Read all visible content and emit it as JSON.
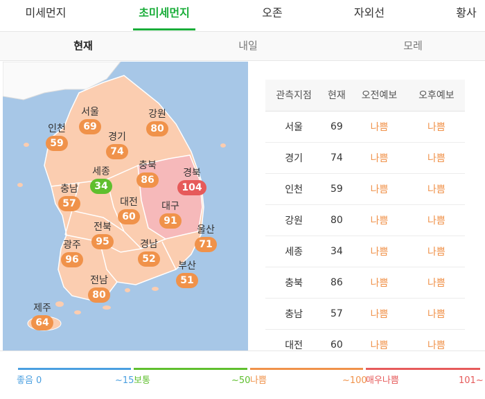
{
  "main_tabs": [
    {
      "label": "미세먼지"
    },
    {
      "label": "초미세먼지"
    },
    {
      "label": "오존"
    },
    {
      "label": "자외선"
    },
    {
      "label": "황사"
    }
  ],
  "sub_tabs": [
    {
      "label": "현재"
    },
    {
      "label": "내일"
    },
    {
      "label": "모레"
    }
  ],
  "map": {
    "regions": [
      {
        "name": "인천",
        "value": "59",
        "status": "bad"
      },
      {
        "name": "서울",
        "value": "69",
        "status": "bad"
      },
      {
        "name": "강원",
        "value": "80",
        "status": "bad"
      },
      {
        "name": "경기",
        "value": "74",
        "status": "bad"
      },
      {
        "name": "세종",
        "value": "34",
        "status": "good"
      },
      {
        "name": "충북",
        "value": "86",
        "status": "bad"
      },
      {
        "name": "경북",
        "value": "104",
        "status": "very-bad"
      },
      {
        "name": "충남",
        "value": "57",
        "status": "bad"
      },
      {
        "name": "대전",
        "value": "60",
        "status": "bad"
      },
      {
        "name": "대구",
        "value": "91",
        "status": "bad"
      },
      {
        "name": "전북",
        "value": "95",
        "status": "bad"
      },
      {
        "name": "울산",
        "value": "71",
        "status": "bad"
      },
      {
        "name": "광주",
        "value": "96",
        "status": "bad"
      },
      {
        "name": "경남",
        "value": "52",
        "status": "bad"
      },
      {
        "name": "부산",
        "value": "51",
        "status": "bad"
      },
      {
        "name": "전남",
        "value": "80",
        "status": "bad"
      },
      {
        "name": "제주",
        "value": "64",
        "status": "bad"
      }
    ]
  },
  "table": {
    "headers": [
      "관측지점",
      "현재",
      "오전예보",
      "오후예보"
    ],
    "rows": [
      [
        "서울",
        "69",
        "나쁨",
        "나쁨"
      ],
      [
        "경기",
        "74",
        "나쁨",
        "나쁨"
      ],
      [
        "인천",
        "59",
        "나쁨",
        "나쁨"
      ],
      [
        "강원",
        "80",
        "나쁨",
        "나쁨"
      ],
      [
        "세종",
        "34",
        "나쁨",
        "나쁨"
      ],
      [
        "충북",
        "86",
        "나쁨",
        "나쁨"
      ],
      [
        "충남",
        "57",
        "나쁨",
        "나쁨"
      ],
      [
        "대전",
        "60",
        "나쁨",
        "나쁨"
      ]
    ]
  },
  "legend": {
    "items": [
      {
        "start": "좋음 0",
        "end": "~15",
        "color": "#4a9fe0"
      },
      {
        "start": "보통",
        "end": "~50",
        "color": "#5fbf2e"
      },
      {
        "start": "나쁨",
        "end": "~100",
        "color": "#f0924a"
      },
      {
        "start": "매우나쁨",
        "end": "101~",
        "color": "#e65a5a"
      }
    ]
  },
  "colors": {
    "accent": "#19ad39",
    "good": "#5fbf2e",
    "bad": "#f0924a",
    "very_bad": "#e65a5a",
    "sea": "#a7c7e7",
    "land": "#fbcdb0"
  }
}
